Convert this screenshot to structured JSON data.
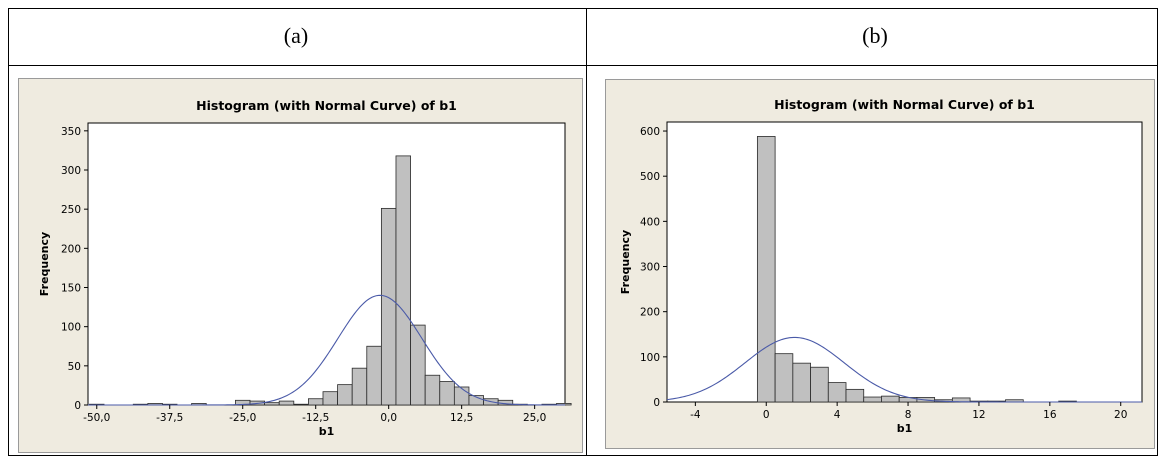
{
  "labels": {
    "a": "(a)",
    "b": "(b)"
  },
  "chart_data": [
    {
      "type": "bar",
      "subtype": "histogram_with_normal_curve",
      "title": "Histogram (with Normal Curve) of b1",
      "xlabel": "b1",
      "ylabel": "Frequency",
      "xlim": [
        -51.5,
        30.2
      ],
      "ylim": [
        0,
        360
      ],
      "xticks": [
        -50.0,
        -37.5,
        -25.0,
        -12.5,
        0.0,
        12.5,
        25.0
      ],
      "xtick_labels": [
        "-50,0",
        "-37,5",
        "-25,0",
        "-12,5",
        "0,0",
        "12,5",
        "25,0"
      ],
      "yticks": [
        0,
        50,
        100,
        150,
        200,
        250,
        300,
        350
      ],
      "bin_width": 2.5,
      "bin_centers": [
        -50,
        -47.5,
        -45,
        -42.5,
        -40,
        -37.5,
        -35,
        -32.5,
        -30,
        -27.5,
        -25,
        -22.5,
        -20,
        -17.5,
        -15,
        -12.5,
        -10,
        -7.5,
        -5,
        -2.5,
        0,
        2.5,
        5,
        7.5,
        10,
        12.5,
        15,
        17.5,
        20,
        22.5,
        25,
        27.5,
        30
      ],
      "values": [
        1,
        0,
        0,
        1,
        2,
        1,
        0,
        2,
        0,
        0,
        6,
        5,
        3,
        5,
        1,
        8,
        17,
        26,
        47,
        75,
        251,
        318,
        102,
        38,
        30,
        23,
        12,
        8,
        6,
        1,
        0,
        1,
        2
      ],
      "normal_curve": {
        "mean": -1.5,
        "sd": 7.2,
        "peak": 140
      },
      "colors": {
        "bar": "#c0c0c0",
        "curve": "#4a5aa8",
        "background": "#efebe0"
      }
    },
    {
      "type": "bar",
      "subtype": "histogram_with_normal_curve",
      "title": "Histogram (with Normal Curve) of b1",
      "xlabel": "b1",
      "ylabel": "Frequency",
      "xlim": [
        -5.6,
        21.2
      ],
      "ylim": [
        0,
        620
      ],
      "xticks": [
        -4,
        0,
        4,
        8,
        12,
        16,
        20
      ],
      "xtick_labels": [
        "-4",
        "0",
        "4",
        "8",
        "12",
        "16",
        "20"
      ],
      "yticks": [
        0,
        100,
        200,
        300,
        400,
        500,
        600
      ],
      "bin_width": 1,
      "bin_centers": [
        0,
        1,
        2,
        3,
        4,
        5,
        6,
        7,
        8,
        9,
        10,
        11,
        12,
        13,
        14,
        15,
        16,
        17
      ],
      "values": [
        588,
        107,
        86,
        77,
        43,
        28,
        11,
        13,
        10,
        10,
        5,
        9,
        2,
        2,
        5,
        0,
        0,
        2
      ],
      "normal_curve": {
        "mean": 1.6,
        "sd": 2.8,
        "peak": 143
      },
      "colors": {
        "bar": "#c0c0c0",
        "curve": "#4a5aa8",
        "background": "#efebe0"
      }
    }
  ]
}
